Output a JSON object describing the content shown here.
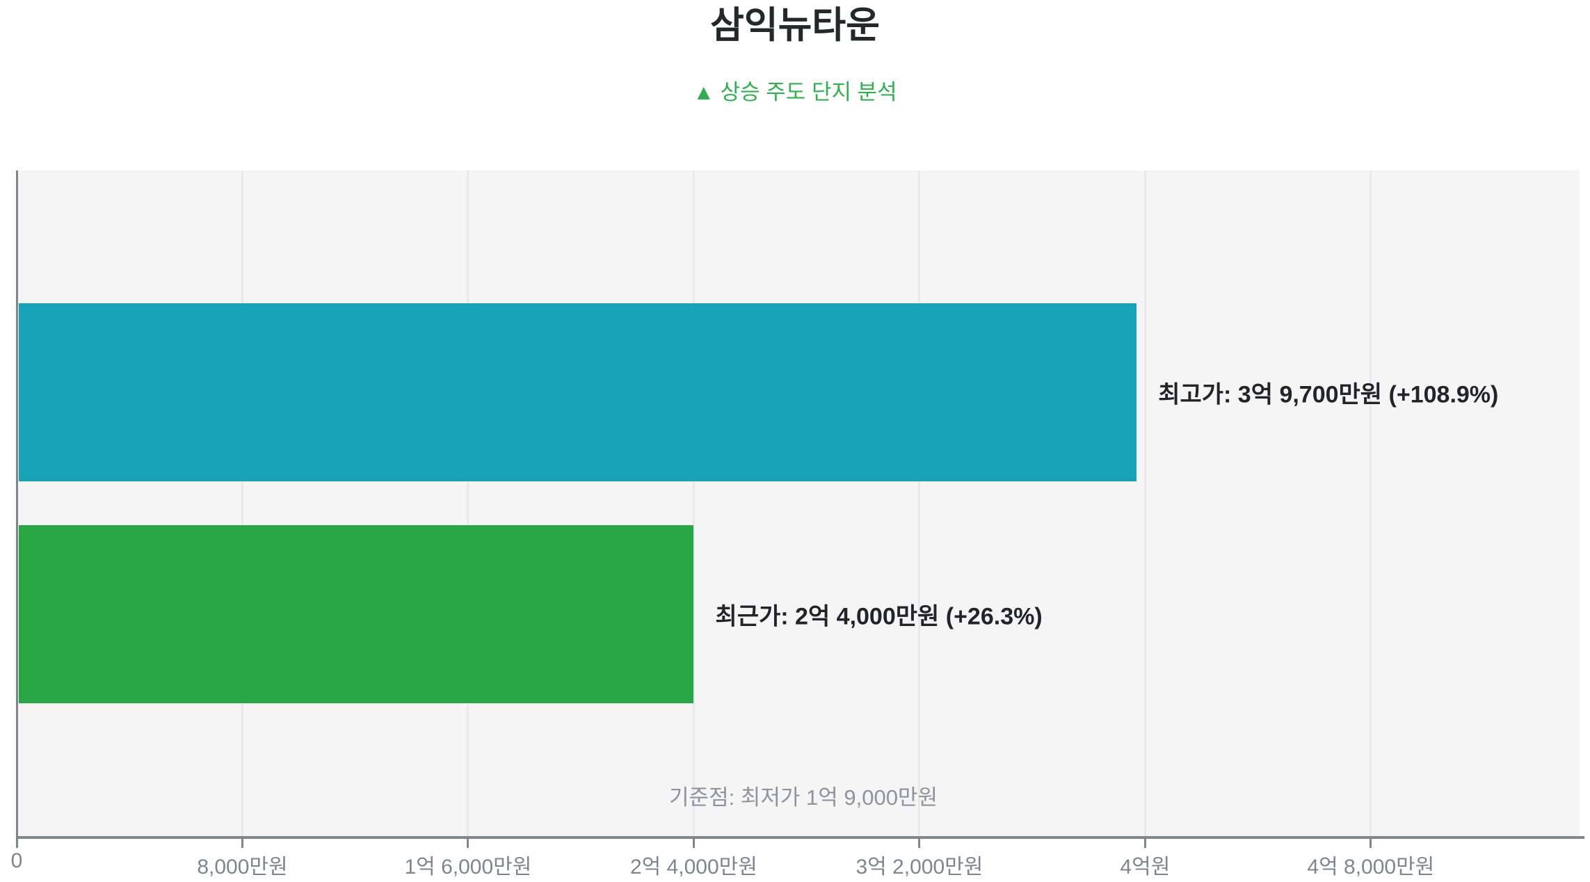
{
  "header": {
    "title": "삼익뉴타운",
    "subtitle": "▲ 상승 주도 단지 분석",
    "title_color": "#23282d",
    "subtitle_color": "#2eb04e"
  },
  "chart_data": {
    "type": "bar",
    "orientation": "horizontal",
    "title": "삼익뉴타운",
    "subtitle": "▲ 상승 주도 단지 분석",
    "unit": "만원",
    "categories": [
      "최고가",
      "최근가"
    ],
    "series": [
      {
        "name": "최고가",
        "value": 39700,
        "label": "최고가: 3억 9,700만원 (+108.9%)",
        "change_pct": "+108.9%",
        "color": "#18a2b8"
      },
      {
        "name": "최근가",
        "value": 24000,
        "label": "최근가: 2억 4,000만원 (+26.3%)",
        "change_pct": "+26.3%",
        "color": "#2aa745"
      }
    ],
    "xlim": [
      0,
      55400
    ],
    "x_ticks": [
      {
        "value": 0,
        "label": "0"
      },
      {
        "value": 8000,
        "label": "8,000만원"
      },
      {
        "value": 16000,
        "label": "1억 6,000만원"
      },
      {
        "value": 24000,
        "label": "2억 4,000만원"
      },
      {
        "value": 32000,
        "label": "3억 2,000만원"
      },
      {
        "value": 40000,
        "label": "4억원"
      },
      {
        "value": 48000,
        "label": "4억 8,000만원"
      }
    ],
    "annotation": "기준점: 최저가 1억 9,000만원",
    "baseline": {
      "name": "최저가",
      "value": 19000
    },
    "grid": true,
    "legend": "none",
    "colors": {
      "plot_background": "#f5f5f5",
      "gridline": "#e9e9ea",
      "axis_line": "#7f868d",
      "tick_label": "#7c8690",
      "bar_label": "#212529",
      "annotation": "#8c949d"
    }
  }
}
